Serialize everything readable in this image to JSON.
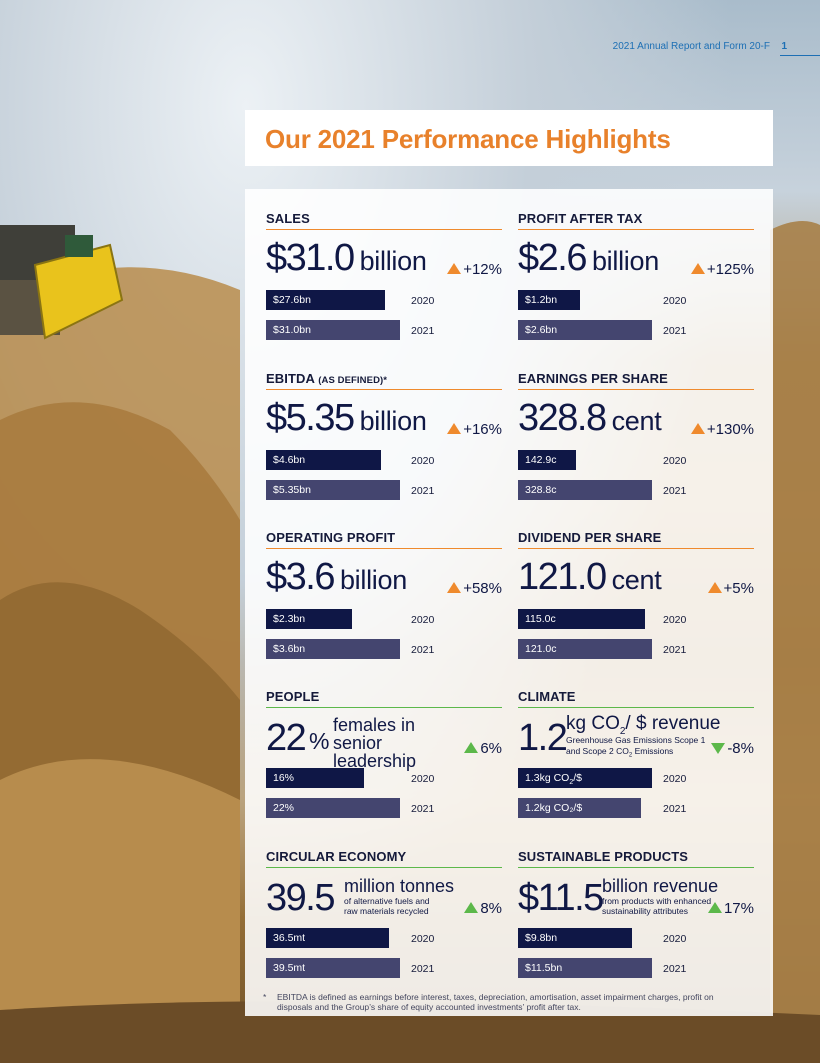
{
  "header": {
    "report": "2021 Annual Report and Form 20-F",
    "page": "1"
  },
  "title": "Our 2021 Performance Highlights",
  "cards": {
    "sales": {
      "title": "SALES",
      "value": "$31.0",
      "unit": "billion",
      "change": "+12%",
      "bar2020": "$27.6bn",
      "bar2021": "$31.0bn",
      "y2020": "2020",
      "y2021": "2021",
      "fill2020": 0.89,
      "fill2021": 1.0
    },
    "pat": {
      "title": "PROFIT AFTER TAX",
      "value": "$2.6",
      "unit": "billion",
      "change": "+125%",
      "bar2020": "$1.2bn",
      "bar2021": "$2.6bn",
      "y2020": "2020",
      "y2021": "2021",
      "fill2020": 0.46,
      "fill2021": 1.0
    },
    "ebitda": {
      "title": "EBITDA",
      "title_small": "(AS DEFINED)*",
      "value": "$5.35",
      "unit": "billion",
      "change": "+16%",
      "bar2020": "$4.6bn",
      "bar2021": "$5.35bn",
      "y2020": "2020",
      "y2021": "2021",
      "fill2020": 0.86,
      "fill2021": 1.0
    },
    "eps": {
      "title": "EARNINGS PER SHARE",
      "value": "328.8",
      "unit": "cent",
      "change": "+130%",
      "bar2020": "142.9c",
      "bar2021": "328.8c",
      "y2020": "2020",
      "y2021": "2021",
      "fill2020": 0.43,
      "fill2021": 1.0
    },
    "op": {
      "title": "OPERATING PROFIT",
      "value": "$3.6",
      "unit": "billion",
      "change": "+58%",
      "bar2020": "$2.3bn",
      "bar2021": "$3.6bn",
      "y2020": "2020",
      "y2021": "2021",
      "fill2020": 0.64,
      "fill2021": 1.0
    },
    "dps": {
      "title": "DIVIDEND PER SHARE",
      "value": "121.0",
      "unit": "cent",
      "change": "+5%",
      "bar2020": "115.0c",
      "bar2021": "121.0c",
      "y2020": "2020",
      "y2021": "2021",
      "fill2020": 0.95,
      "fill2021": 1.0
    },
    "people": {
      "title": "PEOPLE",
      "value": "22",
      "sign": "%",
      "desc": "females in senior leadership",
      "change": "6%",
      "bar2020": "16%",
      "bar2021": "22%",
      "y2020": "2020",
      "y2021": "2021",
      "fill2020": 0.73,
      "fill2021": 1.0
    },
    "climate": {
      "title": "CLIMATE",
      "value": "1.2",
      "head_a": "kg CO",
      "head_sub": "2",
      "head_b": "/ $ revenue",
      "desc_a": "Greenhouse Gas Emissions Scope 1",
      "desc_b": "and Scope 2 CO",
      "desc_sub": "2",
      "desc_c": " Emissions",
      "change": "-8%",
      "bar2020_a": "1.3kg CO",
      "bar2020_sub": "2",
      "bar2020_b": "/$",
      "bar2021": "1.2kg CO₂/$",
      "y2020": "2020",
      "y2021": "2021",
      "fill2020": 1.0,
      "fill2021": 0.92
    },
    "ce": {
      "title": "CIRCULAR ECONOMY",
      "value": "39.5",
      "head": "million tonnes",
      "desc": "of alternative fuels and raw materials recycled",
      "change": "8%",
      "bar2020": "36.5mt",
      "bar2021": "39.5mt",
      "y2020": "2020",
      "y2021": "2021",
      "fill2020": 0.92,
      "fill2021": 1.0
    },
    "sp": {
      "title": "SUSTAINABLE PRODUCTS",
      "value": "$11.5",
      "head": "billion revenue",
      "desc": "from products with enhanced sustainability attributes",
      "change": "17%",
      "bar2020": "$9.8bn",
      "bar2021": "$11.5bn",
      "y2020": "2020",
      "y2021": "2021",
      "fill2020": 0.85,
      "fill2021": 1.0
    }
  },
  "footnote": {
    "star": "*",
    "text": "EBITDA is defined as earnings before interest, taxes, depreciation, amortisation, asset impairment charges, profit on disposals and the Group’s share of equity accounted investments’ profit after tax."
  },
  "colors": {
    "accent_orange": "#e8812b",
    "navy_2020": "#0f1746",
    "slate_2021": "#44456f",
    "rule_financial": "#ef8a2d",
    "rule_sustainability": "#5cb84a",
    "header_blue": "#1d6fb4"
  }
}
